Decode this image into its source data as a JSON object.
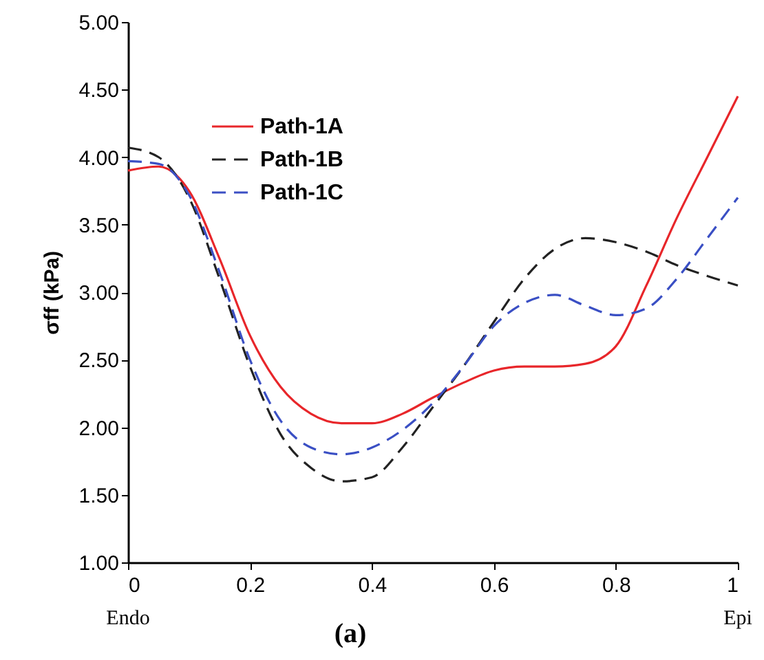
{
  "chart_data": {
    "type": "line",
    "ylabel": "σff (kPa)",
    "x": [
      0,
      0.05,
      0.1,
      0.15,
      0.2,
      0.25,
      0.3,
      0.35,
      0.4,
      0.45,
      0.5,
      0.55,
      0.6,
      0.65,
      0.7,
      0.75,
      0.8,
      0.85,
      0.9,
      0.95,
      1
    ],
    "series": [
      {
        "name": "Path-1A",
        "color": "#e8262a",
        "line_style": "solid",
        "values": [
          3.9,
          3.93,
          3.75,
          3.25,
          2.68,
          2.3,
          2.1,
          2.03,
          2.03,
          2.1,
          2.22,
          2.33,
          2.42,
          2.45,
          2.45,
          2.47,
          2.6,
          3.05,
          3.55,
          4.0,
          4.45
        ]
      },
      {
        "name": "Path-1B",
        "color": "#222222",
        "line_style": "dashed",
        "values": [
          4.07,
          4.0,
          3.7,
          3.1,
          2.45,
          1.95,
          1.7,
          1.6,
          1.63,
          1.85,
          2.15,
          2.45,
          2.78,
          3.1,
          3.32,
          3.4,
          3.37,
          3.3,
          3.2,
          3.12,
          3.05
        ]
      },
      {
        "name": "Path-1C",
        "color": "#3a4fc4",
        "line_style": "dashed",
        "values": [
          3.97,
          3.95,
          3.72,
          3.15,
          2.5,
          2.05,
          1.85,
          1.8,
          1.85,
          1.98,
          2.18,
          2.45,
          2.75,
          2.92,
          2.98,
          2.9,
          2.83,
          2.88,
          3.1,
          3.4,
          3.7
        ]
      }
    ],
    "xlim": [
      0,
      1
    ],
    "xticks": [
      0,
      0.2,
      0.4,
      0.6,
      0.8,
      1
    ],
    "ylim": [
      1,
      5
    ],
    "yticks": [
      {
        "value": 1,
        "label": "1.00"
      },
      {
        "value": 1.5,
        "label": "1.50"
      },
      {
        "value": 2,
        "label": "2.00"
      },
      {
        "value": 2.5,
        "label": "2.50"
      },
      {
        "value": 3,
        "label": "3.00"
      },
      {
        "value": 3.5,
        "label": "3.50"
      },
      {
        "value": 4,
        "label": "4.00"
      },
      {
        "value": 4.5,
        "label": "4.50"
      },
      {
        "value": 5,
        "label": "5.00"
      }
    ],
    "grid": false,
    "legend": "top left",
    "marker": "none",
    "annotations": [
      "Endo",
      "Epi",
      "(a)"
    ]
  }
}
